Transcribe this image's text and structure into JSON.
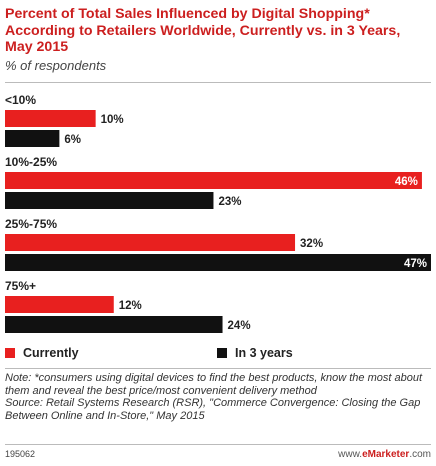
{
  "header": {
    "title": "Percent of Total Sales Influenced by Digital Shopping* According to Retailers Worldwide, Currently vs. in 3 Years, May 2015",
    "subtitle": "% of respondents"
  },
  "colors": {
    "currently": "#e8201f",
    "in_3_years": "#111111",
    "title": "#cc1f1f"
  },
  "chart_data": {
    "type": "bar",
    "orientation": "horizontal",
    "categories": [
      "<10%",
      "10%-25%",
      "25%-75%",
      "75%+"
    ],
    "series": [
      {
        "name": "Currently",
        "values": [
          10,
          46,
          32,
          12
        ]
      },
      {
        "name": "In 3 years",
        "values": [
          6,
          23,
          47,
          24
        ]
      }
    ],
    "value_labels": [
      [
        "10%",
        "6%"
      ],
      [
        "46%",
        "23%"
      ],
      [
        "32%",
        "47%"
      ],
      [
        "12%",
        "24%"
      ]
    ],
    "title": "Percent of Total Sales Influenced by Digital Shopping* According to Retailers Worldwide, Currently vs. in 3 Years, May 2015",
    "xlim": [
      0,
      47
    ],
    "grid": false,
    "legend_position": "bottom"
  },
  "legend": {
    "currently": "Currently",
    "in_3_years": "In 3 years"
  },
  "note": {
    "text": "Note: *consumers using digital devices to find the best products, know the most about them and reveal the best price/most convenient delivery method",
    "source": "Source: Retail Systems Research (RSR), \"Commerce Convergence: Closing the Gap Between Online and In-Store,\" May 2015"
  },
  "footer": {
    "id": "195062",
    "brand_prefix": "www.",
    "brand_name": "eMarketer",
    "brand_suffix": ".com"
  }
}
